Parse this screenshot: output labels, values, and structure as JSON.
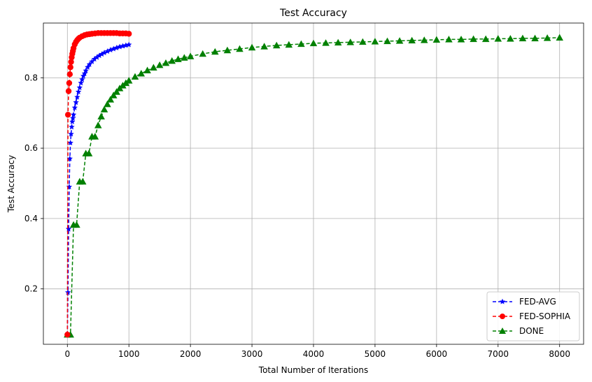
{
  "chart_data": {
    "type": "line",
    "title": "Test Accuracy",
    "xlabel": "Total Number of Iterations",
    "ylabel": "Test Accuracy",
    "xlim": [
      -390,
      8390
    ],
    "ylim": [
      0.0426,
      0.9555
    ],
    "xticks": [
      0,
      1000,
      2000,
      3000,
      4000,
      5000,
      6000,
      7000,
      8000
    ],
    "xtick_labels": [
      "0",
      "1000",
      "2000",
      "3000",
      "4000",
      "5000",
      "6000",
      "7000",
      "8000"
    ],
    "yticks": [
      0.2,
      0.4,
      0.6,
      0.8
    ],
    "ytick_labels": [
      "0.2",
      "0.4",
      "0.6",
      "0.8"
    ],
    "grid": true,
    "legend_position": "lower-right",
    "series": [
      {
        "name": "FED-AVG",
        "color": "#0000ff",
        "marker": "star",
        "linestyle": "dashed",
        "x": [
          0,
          10,
          20,
          30,
          40,
          50,
          60,
          70,
          80,
          90,
          100,
          120,
          140,
          160,
          180,
          200,
          220,
          240,
          260,
          280,
          300,
          330,
          360,
          400,
          440,
          480,
          520,
          560,
          600,
          650,
          700,
          750,
          800,
          850,
          900,
          950,
          1000
        ],
        "y": [
          0.07,
          0.19,
          0.37,
          0.49,
          0.57,
          0.615,
          0.64,
          0.66,
          0.675,
          0.685,
          0.695,
          0.715,
          0.73,
          0.745,
          0.76,
          0.772,
          0.785,
          0.795,
          0.805,
          0.812,
          0.82,
          0.83,
          0.838,
          0.846,
          0.853,
          0.858,
          0.863,
          0.867,
          0.871,
          0.875,
          0.879,
          0.882,
          0.885,
          0.888,
          0.89,
          0.892,
          0.894
        ]
      },
      {
        "name": "FED-SOPHIA",
        "color": "#ff0000",
        "marker": "circle",
        "linestyle": "dashed",
        "x": [
          0,
          10,
          20,
          30,
          40,
          50,
          60,
          70,
          80,
          90,
          100,
          120,
          140,
          160,
          180,
          200,
          240,
          280,
          320,
          360,
          400,
          450,
          500,
          550,
          600,
          650,
          700,
          750,
          800,
          850,
          900,
          950,
          1000
        ],
        "y": [
          0.07,
          0.695,
          0.762,
          0.785,
          0.81,
          0.83,
          0.845,
          0.858,
          0.868,
          0.876,
          0.884,
          0.895,
          0.902,
          0.907,
          0.911,
          0.914,
          0.918,
          0.921,
          0.923,
          0.924,
          0.925,
          0.926,
          0.927,
          0.927,
          0.927,
          0.927,
          0.927,
          0.927,
          0.927,
          0.926,
          0.926,
          0.926,
          0.925
        ]
      },
      {
        "name": "DONE",
        "color": "#008000",
        "marker": "triangle",
        "linestyle": "dashed",
        "x": [
          0,
          50,
          100,
          150,
          200,
          250,
          300,
          350,
          400,
          450,
          500,
          550,
          600,
          650,
          700,
          750,
          800,
          850,
          900,
          950,
          1000,
          1100,
          1200,
          1300,
          1400,
          1500,
          1600,
          1700,
          1800,
          1900,
          2000,
          2200,
          2400,
          2600,
          2800,
          3000,
          3200,
          3400,
          3600,
          3800,
          4000,
          4200,
          4400,
          4600,
          4800,
          5000,
          5200,
          5400,
          5600,
          5800,
          6000,
          6200,
          6400,
          6600,
          6800,
          7000,
          7200,
          7400,
          7600,
          7800,
          8000
        ],
        "y": [
          0.07,
          0.07,
          0.382,
          0.382,
          0.505,
          0.505,
          0.585,
          0.585,
          0.633,
          0.633,
          0.665,
          0.69,
          0.71,
          0.725,
          0.738,
          0.75,
          0.76,
          0.77,
          0.778,
          0.785,
          0.792,
          0.803,
          0.812,
          0.821,
          0.829,
          0.836,
          0.842,
          0.848,
          0.853,
          0.857,
          0.861,
          0.868,
          0.874,
          0.878,
          0.882,
          0.886,
          0.889,
          0.892,
          0.894,
          0.896,
          0.898,
          0.899,
          0.9,
          0.901,
          0.902,
          0.903,
          0.904,
          0.905,
          0.906,
          0.907,
          0.908,
          0.909,
          0.909,
          0.91,
          0.91,
          0.911,
          0.911,
          0.912,
          0.912,
          0.913,
          0.914
        ]
      }
    ]
  }
}
